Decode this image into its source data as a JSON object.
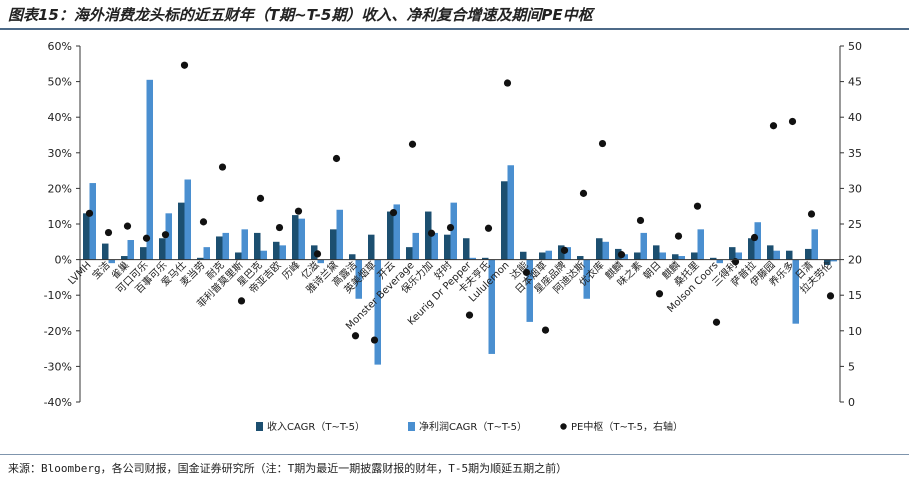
{
  "title": "图表15：海外消费龙头标的近五财年（T期~T-5期）收入、净利复合增速及期间PE中枢",
  "source": "来源：Bloomberg，各公司财报，国金证券研究所（注：T期为最近一期披露财报的财年，T-5期为顺延五期之前）",
  "colors": {
    "revenue": "#1c4f70",
    "net_profit": "#4a8fd0",
    "pe": "#111111"
  },
  "chart_data": {
    "type": "bar",
    "categories": [
      "LVMH",
      "宝洁",
      "雀巢",
      "可口可乐",
      "百事可乐",
      "爱马仕",
      "麦当劳",
      "耐克",
      "菲利普莫里斯",
      "星巴克",
      "帝亚吉欧",
      "历峰",
      "亿滋",
      "雅诗兰黛",
      "高露洁",
      "英美烟草",
      "开云",
      "Monster Beverage",
      "保乐力加",
      "好时",
      "Keurig Dr Pepper",
      "卡夫亨氏",
      "Lululemon",
      "达能",
      "日本烟草",
      "星座品牌",
      "阿迪达斯",
      "优衣库",
      "麒麟",
      "味之素",
      "朝日",
      "麒麟",
      "桑托里",
      "Molson Coors",
      "三得利",
      "萨普拉",
      "伊藤园",
      "养乐多",
      "日清",
      "拉夫劳伦"
    ],
    "series": [
      {
        "name": "收入CAGR（T~T-5）",
        "axis": "left",
        "values": [
          13,
          4.5,
          1,
          3.5,
          6,
          16,
          0.5,
          6.5,
          2,
          7.5,
          5,
          12.5,
          4,
          8.5,
          1.5,
          7,
          13.5,
          3.5,
          13.5,
          7,
          6,
          0.5,
          22,
          2.2,
          2,
          4,
          1,
          6,
          3,
          2,
          4,
          1.5,
          2,
          0.5,
          3.5,
          6,
          4,
          2.5,
          3,
          -1.5
        ]
      },
      {
        "name": "净利润CAGR（T~T-5）",
        "axis": "left",
        "values": [
          21.5,
          -1,
          5.5,
          50.5,
          13,
          22.5,
          3.5,
          7.5,
          8.5,
          2.5,
          4,
          11.5,
          -1,
          14,
          -11,
          -29.5,
          15.5,
          7.5,
          7.5,
          16,
          0.5,
          -26.5,
          26.5,
          -17.5,
          2.5,
          3.5,
          -11,
          5,
          1.5,
          7.5,
          2,
          1,
          8.5,
          -1,
          2,
          10.5,
          2.5,
          -18,
          8.5,
          -0.5
        ]
      },
      {
        "name": "PE中枢（T~T-5，右轴）",
        "axis": "right",
        "values": [
          26.5,
          23.8,
          24.7,
          23,
          23.5,
          47.3,
          25.3,
          33,
          14.2,
          28.6,
          24.5,
          26.8,
          20.8,
          34.2,
          9.3,
          8.7,
          26.6,
          36.2,
          23.7,
          24.5,
          12.2,
          24.4,
          44.8,
          18.2,
          10.1,
          21.3,
          29.3,
          36.3,
          20.7,
          25.5,
          15.2,
          23.3,
          27.5,
          11.2,
          19.7,
          23.1,
          38.8,
          39.4,
          26.4,
          14.9
        ]
      }
    ],
    "ylim_left": [
      -40,
      60
    ],
    "yticks_left": [
      "-40%",
      "-30%",
      "-20%",
      "-10%",
      "0%",
      "10%",
      "20%",
      "30%",
      "40%",
      "50%",
      "60%"
    ],
    "ylim_right": [
      0,
      50
    ],
    "yticks_right": [
      "0",
      "5",
      "10",
      "15",
      "20",
      "25",
      "30",
      "35",
      "40",
      "45",
      "50"
    ],
    "legend_position": "bottom"
  }
}
